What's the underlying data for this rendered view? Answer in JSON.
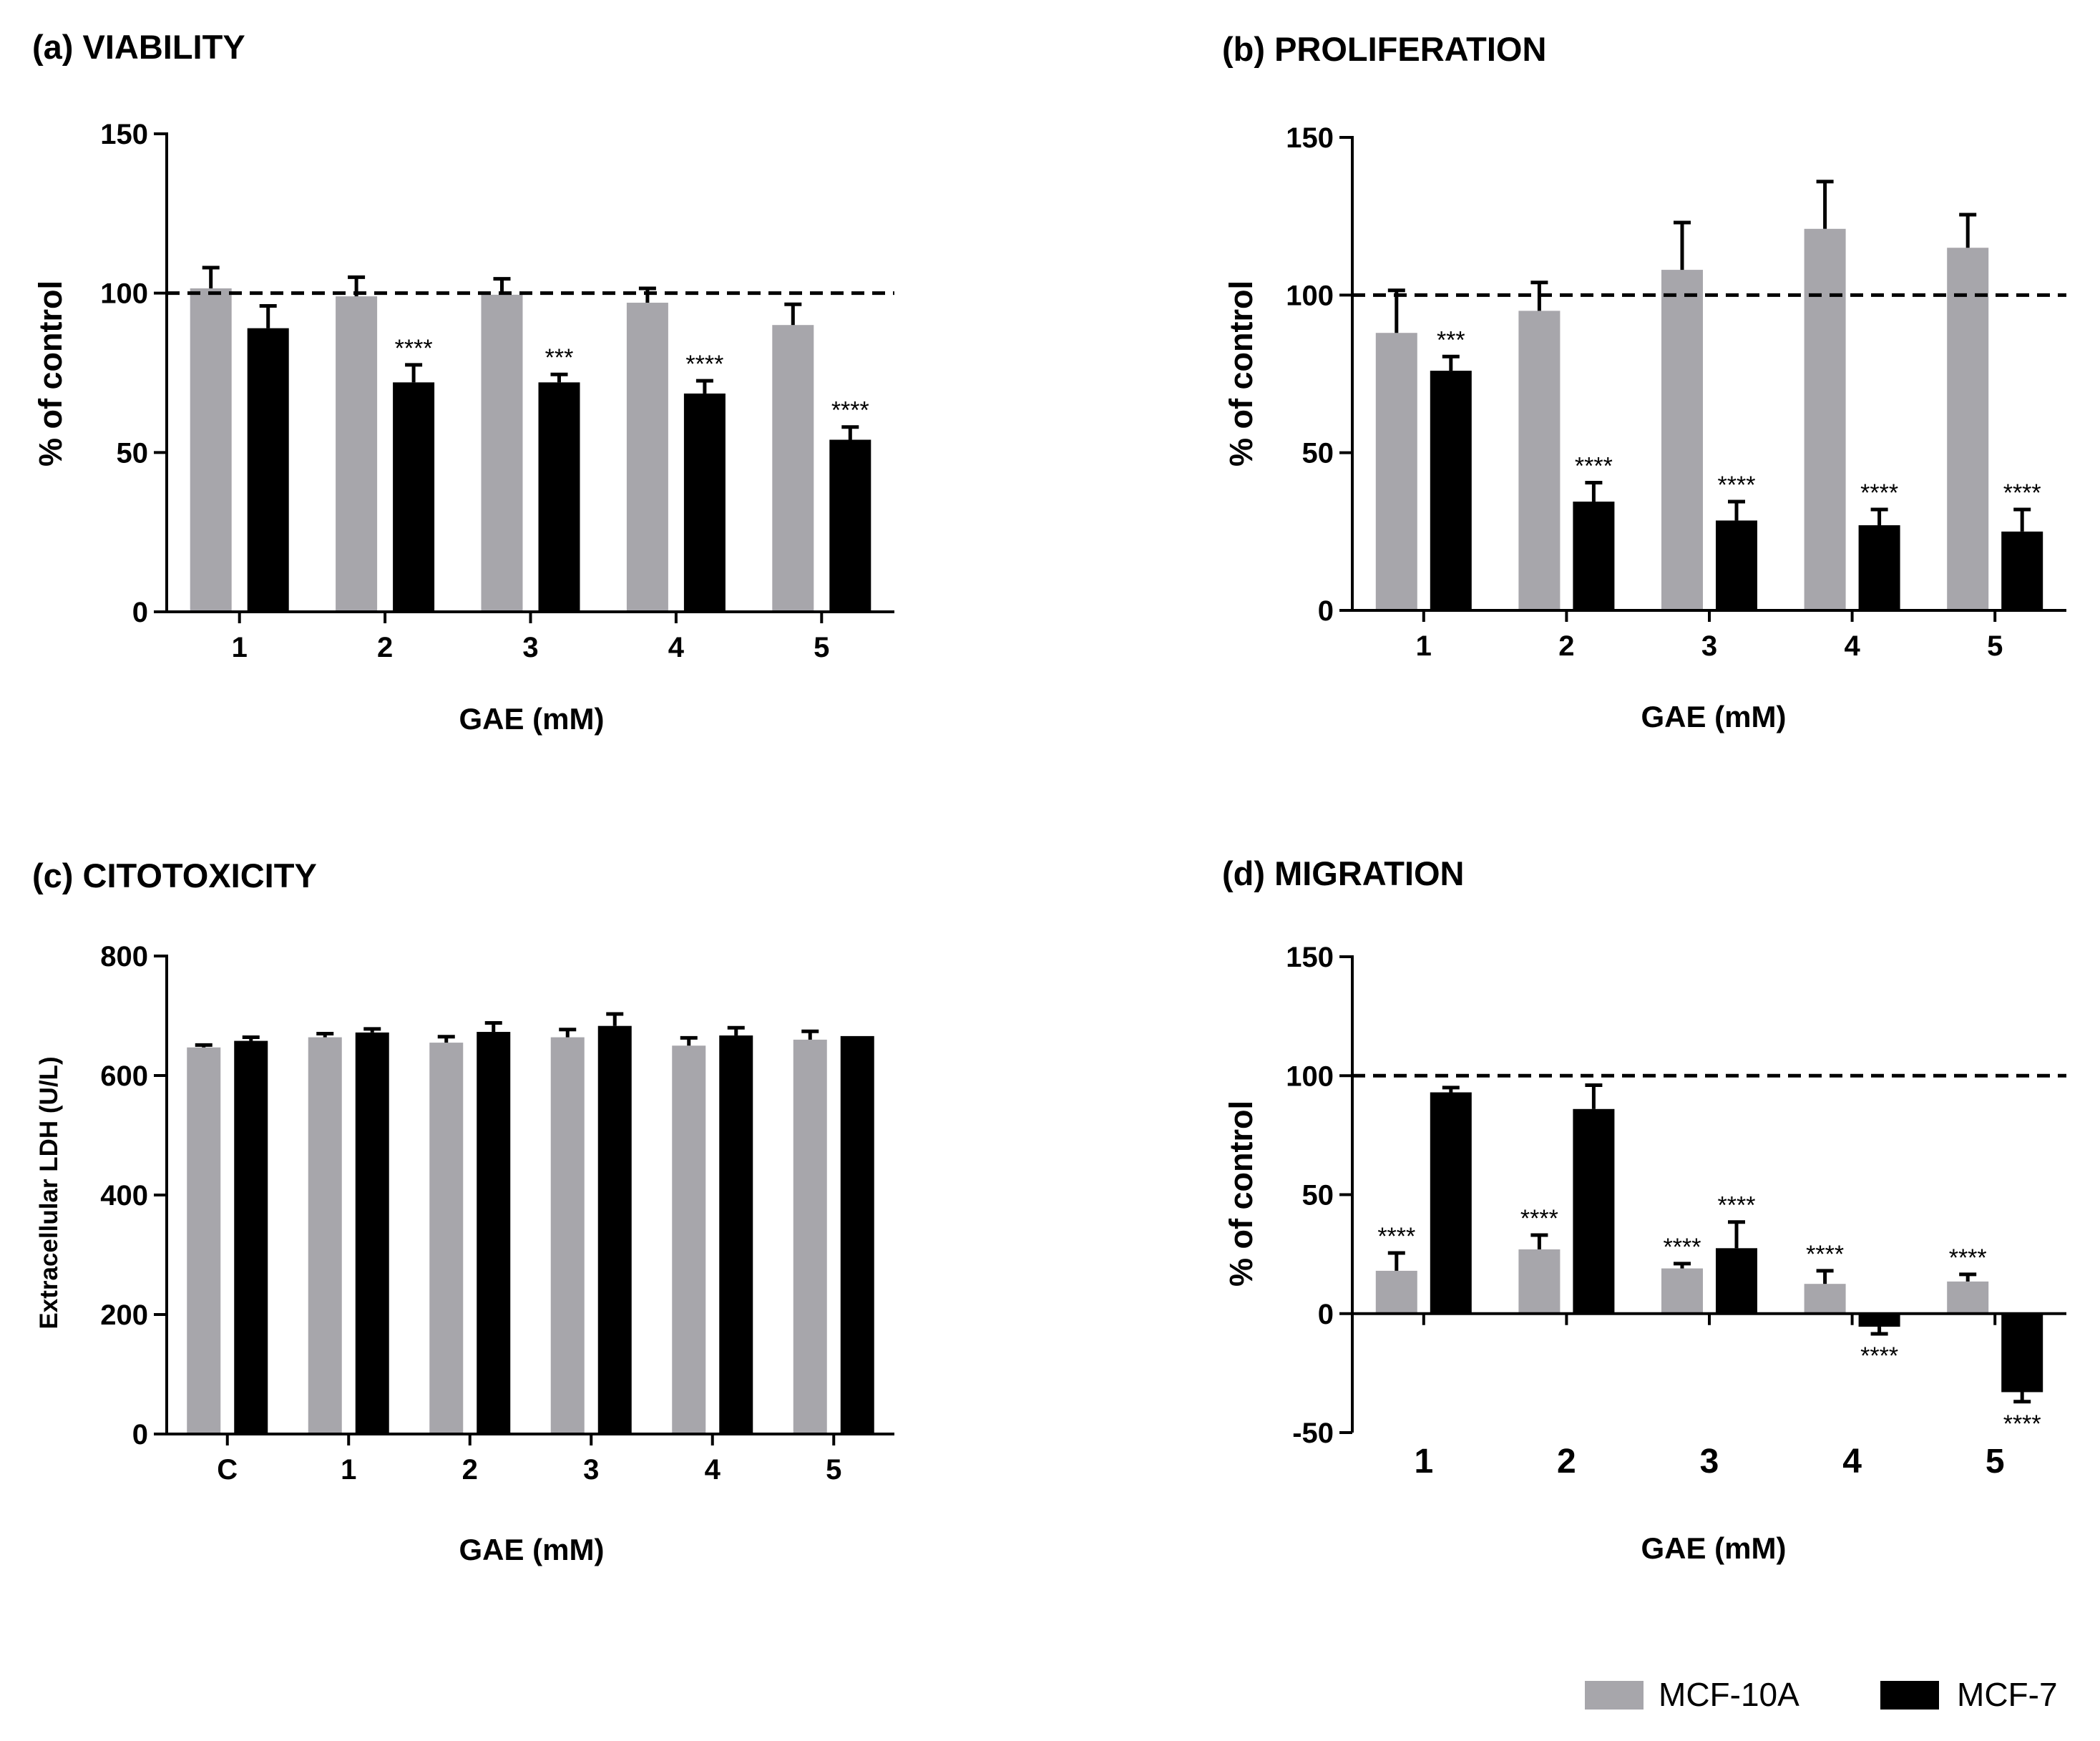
{
  "colors": {
    "mcf10a": "#a7a6ab",
    "mcf7": "#000000",
    "axis": "#000000",
    "background": "#ffffff"
  },
  "legend": [
    {
      "label": "MCF-10A",
      "color": "#a7a6ab"
    },
    {
      "label": "MCF-7",
      "color": "#000000"
    }
  ],
  "chart_data": [
    {
      "id": "a",
      "type": "bar",
      "title": "(a) VIABILITY",
      "xlabel": "GAE (mM)",
      "ylabel": "% of control",
      "categories": [
        "1",
        "2",
        "3",
        "4",
        "5"
      ],
      "ylim": [
        0,
        150
      ],
      "yticks": [
        0,
        50,
        100,
        150
      ],
      "reference_line": 100,
      "series": [
        {
          "name": "MCF-10A",
          "values": [
            101.5,
            99,
            99.5,
            97,
            90
          ],
          "errors": [
            6.5,
            6,
            5,
            4.5,
            6.5
          ],
          "stars": [
            "",
            "",
            "",
            "",
            ""
          ]
        },
        {
          "name": "MCF-7",
          "values": [
            89,
            72,
            72,
            68.5,
            54
          ],
          "errors": [
            7,
            5.5,
            2.5,
            4,
            4
          ],
          "stars": [
            "",
            "****",
            "***",
            "****",
            "****"
          ]
        }
      ]
    },
    {
      "id": "b",
      "type": "bar",
      "title": "(b) PROLIFERATION",
      "xlabel": "GAE (mM)",
      "ylabel": "% of control",
      "categories": [
        "1",
        "2",
        "3",
        "4",
        "5"
      ],
      "ylim": [
        0,
        150
      ],
      "yticks": [
        0,
        50,
        100,
        150
      ],
      "reference_line": 100,
      "series": [
        {
          "name": "MCF-10A",
          "values": [
            88,
            95,
            108,
            121,
            115
          ],
          "errors": [
            13.5,
            9,
            15,
            15,
            10.5
          ],
          "stars": [
            "",
            "",
            "",
            "",
            ""
          ]
        },
        {
          "name": "MCF-7",
          "values": [
            76,
            34.5,
            28.5,
            27,
            25
          ],
          "errors": [
            4.5,
            6,
            6,
            5,
            7
          ],
          "stars": [
            "***",
            "****",
            "****",
            "****",
            "****"
          ]
        }
      ]
    },
    {
      "id": "c",
      "type": "bar",
      "title": "(c) CITOTOXICITY",
      "xlabel": "GAE (mM)",
      "ylabel": "Extracellular LDH (U/L)",
      "categories": [
        "C",
        "1",
        "2",
        "3",
        "4",
        "5"
      ],
      "ylim": [
        0,
        800
      ],
      "yticks": [
        0,
        200,
        400,
        600,
        800
      ],
      "reference_line": null,
      "series": [
        {
          "name": "MCF-10A",
          "values": [
            647,
            664,
            655,
            664,
            650,
            660
          ],
          "errors": [
            4,
            6,
            10,
            13,
            13,
            14
          ],
          "stars": [
            "",
            "",
            "",
            "",
            "",
            ""
          ]
        },
        {
          "name": "MCF-7",
          "values": [
            658,
            672,
            673,
            683,
            667,
            666
          ],
          "errors": [
            6,
            6,
            15,
            20,
            13,
            0
          ],
          "stars": [
            "",
            "",
            "",
            "",
            "",
            ""
          ]
        }
      ]
    },
    {
      "id": "d",
      "type": "bar",
      "title": "(d) MIGRATION",
      "xlabel": "GAE (mM)",
      "ylabel": "% of control",
      "categories": [
        "1",
        "2",
        "3",
        "4",
        "5"
      ],
      "ylim": [
        -50,
        150
      ],
      "yticks": [
        -50,
        0,
        50,
        100,
        150
      ],
      "reference_line": 100,
      "series": [
        {
          "name": "MCF-10A",
          "values": [
            18,
            27,
            19,
            12.5,
            13.5
          ],
          "errors": [
            7.5,
            6,
            2,
            5.5,
            3
          ],
          "stars": [
            "****",
            "****",
            "****",
            "****",
            "****"
          ]
        },
        {
          "name": "MCF-7",
          "values": [
            93,
            86,
            27.5,
            -5.5,
            -33
          ],
          "errors": [
            2,
            10,
            11,
            3,
            4
          ],
          "stars": [
            "",
            "",
            "****",
            "****",
            "****"
          ]
        }
      ]
    }
  ]
}
